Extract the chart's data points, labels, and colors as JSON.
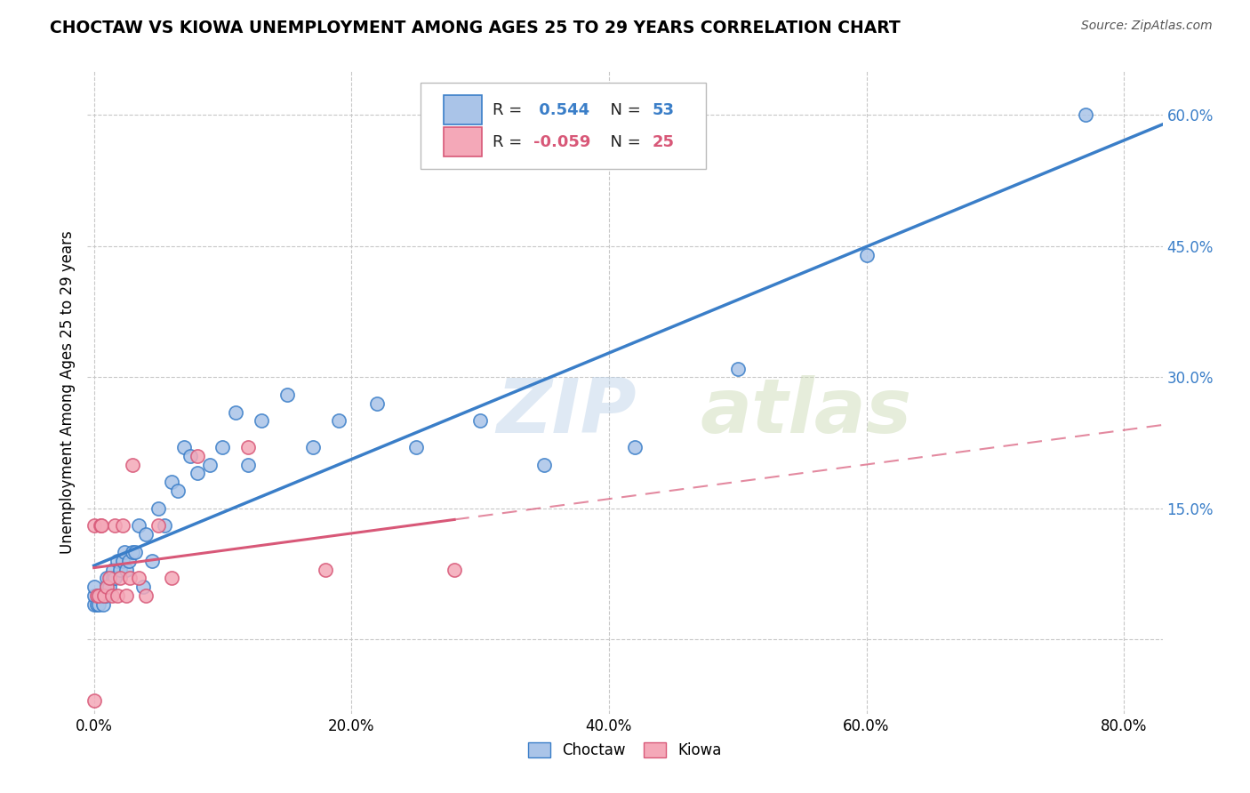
{
  "title": "CHOCTAW VS KIOWA UNEMPLOYMENT AMONG AGES 25 TO 29 YEARS CORRELATION CHART",
  "source": "Source: ZipAtlas.com",
  "xlabel_ticks": [
    "0.0%",
    "20.0%",
    "40.0%",
    "60.0%",
    "80.0%"
  ],
  "xlabel_vals": [
    0.0,
    0.2,
    0.4,
    0.6,
    0.8
  ],
  "right_ytick_labels": [
    "60.0%",
    "45.0%",
    "30.0%",
    "15.0%"
  ],
  "right_ytick_vals": [
    0.6,
    0.45,
    0.3,
    0.15
  ],
  "ylabel": "Unemployment Among Ages 25 to 29 years",
  "choctaw_R": 0.544,
  "choctaw_N": 53,
  "kiowa_R": -0.059,
  "kiowa_N": 25,
  "choctaw_color": "#aac4e8",
  "kiowa_color": "#f4a8b8",
  "choctaw_line_color": "#3a7ec8",
  "kiowa_line_color": "#d85878",
  "xlim_min": -0.005,
  "xlim_max": 0.83,
  "ylim_min": -0.085,
  "ylim_max": 0.65,
  "choctaw_x": [
    0.0,
    0.0,
    0.0,
    0.002,
    0.003,
    0.004,
    0.005,
    0.006,
    0.007,
    0.008,
    0.009,
    0.01,
    0.01,
    0.012,
    0.013,
    0.015,
    0.015,
    0.016,
    0.018,
    0.02,
    0.022,
    0.024,
    0.025,
    0.027,
    0.03,
    0.032,
    0.035,
    0.038,
    0.04,
    0.045,
    0.05,
    0.055,
    0.06,
    0.065,
    0.07,
    0.075,
    0.08,
    0.09,
    0.1,
    0.11,
    0.12,
    0.13,
    0.15,
    0.17,
    0.19,
    0.22,
    0.25,
    0.3,
    0.35,
    0.42,
    0.5,
    0.6,
    0.77
  ],
  "choctaw_y": [
    0.04,
    0.05,
    0.06,
    0.04,
    0.05,
    0.04,
    0.05,
    0.05,
    0.04,
    0.05,
    0.05,
    0.06,
    0.07,
    0.06,
    0.07,
    0.07,
    0.08,
    0.07,
    0.09,
    0.08,
    0.09,
    0.1,
    0.08,
    0.09,
    0.1,
    0.1,
    0.13,
    0.06,
    0.12,
    0.09,
    0.15,
    0.13,
    0.18,
    0.17,
    0.22,
    0.21,
    0.19,
    0.2,
    0.22,
    0.26,
    0.2,
    0.25,
    0.28,
    0.22,
    0.25,
    0.27,
    0.22,
    0.25,
    0.2,
    0.22,
    0.31,
    0.44,
    0.6
  ],
  "kiowa_x": [
    0.0,
    0.0,
    0.002,
    0.004,
    0.005,
    0.006,
    0.008,
    0.01,
    0.012,
    0.014,
    0.016,
    0.018,
    0.02,
    0.022,
    0.025,
    0.028,
    0.03,
    0.035,
    0.04,
    0.05,
    0.06,
    0.08,
    0.12,
    0.18,
    0.28
  ],
  "kiowa_y": [
    0.13,
    -0.07,
    0.05,
    0.05,
    0.13,
    0.13,
    0.05,
    0.06,
    0.07,
    0.05,
    0.13,
    0.05,
    0.07,
    0.13,
    0.05,
    0.07,
    0.2,
    0.07,
    0.05,
    0.13,
    0.07,
    0.21,
    0.22,
    0.08,
    0.08
  ]
}
